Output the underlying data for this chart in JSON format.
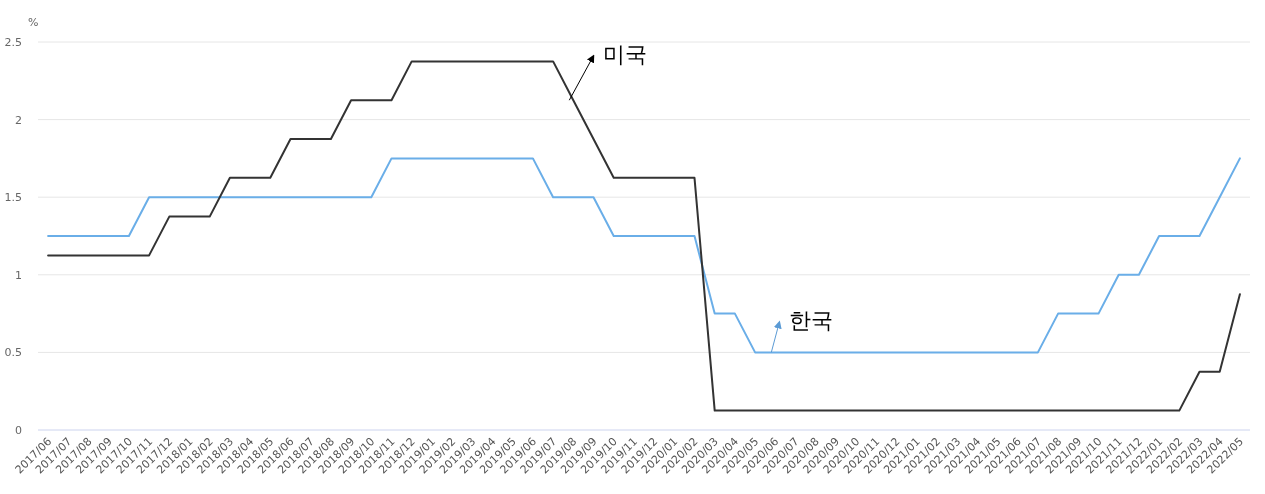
{
  "chart_data": {
    "type": "line",
    "ylabel": "%",
    "categories": [
      "2017/06",
      "2017/07",
      "2017/08",
      "2017/09",
      "2017/10",
      "2017/11",
      "2017/12",
      "2018/01",
      "2018/02",
      "2018/03",
      "2018/04",
      "2018/05",
      "2018/06",
      "2018/07",
      "2018/08",
      "2018/09",
      "2018/10",
      "2018/11",
      "2018/12",
      "2019/01",
      "2019/02",
      "2019/03",
      "2019/04",
      "2019/05",
      "2019/06",
      "2019/07",
      "2019/08",
      "2019/09",
      "2019/10",
      "2019/11",
      "2019/12",
      "2020/01",
      "2020/02",
      "2020/03",
      "2020/04",
      "2020/05",
      "2020/06",
      "2020/07",
      "2020/08",
      "2020/09",
      "2020/10",
      "2020/11",
      "2020/12",
      "2021/01",
      "2021/02",
      "2021/03",
      "2021/04",
      "2021/05",
      "2021/06",
      "2021/07",
      "2021/08",
      "2021/09",
      "2021/10",
      "2021/11",
      "2021/12",
      "2022/01",
      "2022/02",
      "2022/03",
      "2022/04",
      "2022/05"
    ],
    "series": [
      {
        "color": "#6aaee8",
        "values": [
          1.25,
          1.25,
          1.25,
          1.25,
          1.25,
          1.5,
          1.5,
          1.5,
          1.5,
          1.5,
          1.5,
          1.5,
          1.5,
          1.5,
          1.5,
          1.5,
          1.5,
          1.75,
          1.75,
          1.75,
          1.75,
          1.75,
          1.75,
          1.75,
          1.75,
          1.5,
          1.5,
          1.5,
          1.25,
          1.25,
          1.25,
          1.25,
          1.25,
          0.75,
          0.75,
          0.5,
          0.5,
          0.5,
          0.5,
          0.5,
          0.5,
          0.5,
          0.5,
          0.5,
          0.5,
          0.5,
          0.5,
          0.5,
          0.5,
          0.5,
          0.75,
          0.75,
          0.75,
          1.0,
          1.0,
          1.25,
          1.25,
          1.25,
          1.5,
          1.75
        ]
      },
      {
        "color": "#333333",
        "values": [
          1.125,
          1.125,
          1.125,
          1.125,
          1.125,
          1.125,
          1.375,
          1.375,
          1.375,
          1.625,
          1.625,
          1.625,
          1.875,
          1.875,
          1.875,
          2.125,
          2.125,
          2.125,
          2.375,
          2.375,
          2.375,
          2.375,
          2.375,
          2.375,
          2.375,
          2.375,
          2.125,
          1.875,
          1.625,
          1.625,
          1.625,
          1.625,
          1.625,
          0.125,
          0.125,
          0.125,
          0.125,
          0.125,
          0.125,
          0.125,
          0.125,
          0.125,
          0.125,
          0.125,
          0.125,
          0.125,
          0.125,
          0.125,
          0.125,
          0.125,
          0.125,
          0.125,
          0.125,
          0.125,
          0.125,
          0.125,
          0.125,
          0.375,
          0.375,
          0.875
        ]
      }
    ],
    "ylim": [
      0,
      2.5
    ],
    "yticks": [
      0,
      0.5,
      1,
      1.5,
      2,
      2.5
    ],
    "grid": "y",
    "marker": "none",
    "line_style": "solid",
    "annotations": [
      {
        "text": "미국",
        "x": "2019/08",
        "y": 2.125
      },
      {
        "text": "한국",
        "x": "2020/06",
        "y": 0.5
      }
    ]
  }
}
